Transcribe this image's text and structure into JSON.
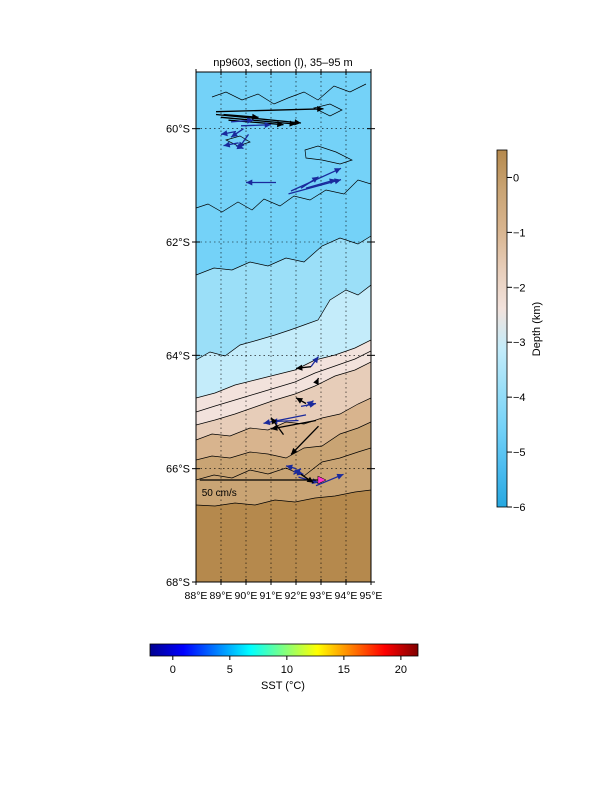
{
  "title": "np9603, section (l), 35–95 m",
  "map": {
    "lon_range": [
      88,
      95
    ],
    "lat_range": [
      -68,
      -59
    ],
    "lon_ticks": [
      {
        "value": 88,
        "label": "88°E"
      },
      {
        "value": 89,
        "label": "89°E"
      },
      {
        "value": 90,
        "label": "90°E"
      },
      {
        "value": 91,
        "label": "91°E"
      },
      {
        "value": 92,
        "label": "92°E"
      },
      {
        "value": 93,
        "label": "93°E"
      },
      {
        "value": 94,
        "label": "94°E"
      },
      {
        "value": 95,
        "label": "95°E"
      }
    ],
    "lat_ticks": [
      {
        "value": -60,
        "label": "60°S"
      },
      {
        "value": -62,
        "label": "62°S"
      },
      {
        "value": -64,
        "label": "64°S"
      },
      {
        "value": -66,
        "label": "66°S"
      },
      {
        "value": -68,
        "label": "68°S"
      }
    ],
    "grid": true,
    "grid_style": "dotted",
    "bathymetry_bands_depth_km": [
      {
        "from": -5,
        "to": -4,
        "color": "#74d2f8"
      },
      {
        "from": -4,
        "to": -3,
        "color": "#9bdff8"
      },
      {
        "from": -3,
        "to": -2,
        "color": "#c4ecfa"
      },
      {
        "from": -2,
        "to": -1.5,
        "color": "#f2e2dc"
      },
      {
        "from": -1.5,
        "to": -1,
        "color": "#e7cdb9"
      },
      {
        "from": -1,
        "to": -0.5,
        "color": "#d8b48e"
      },
      {
        "from": -0.5,
        "to": 0,
        "color": "#c9a474"
      },
      {
        "from": 0,
        "to": 1,
        "color": "#b5894d"
      }
    ],
    "scale_arrow": {
      "label": "50 cm/s",
      "color": "#ff33cc",
      "lon_start": 88.15,
      "lon_end": 93.2,
      "lat": -66.2
    }
  },
  "vectors": {
    "units": "lon/lat degrees",
    "items": [
      {
        "lon": 88.8,
        "lat": -59.7,
        "dlon": 4.3,
        "dlat": 0.05,
        "color": "#000000"
      },
      {
        "lon": 88.8,
        "lat": -59.75,
        "dlon": 3.4,
        "dlat": -0.15,
        "color": "#000000"
      },
      {
        "lon": 89.0,
        "lat": -59.8,
        "dlon": 3.0,
        "dlat": -0.12,
        "color": "#000000"
      },
      {
        "lon": 89.3,
        "lat": -59.85,
        "dlon": 2.2,
        "dlat": -0.08,
        "color": "#000000"
      },
      {
        "lon": 89.1,
        "lat": -59.75,
        "dlon": 1.4,
        "dlat": -0.05,
        "color": "#000000"
      },
      {
        "lon": 89.4,
        "lat": -59.88,
        "dlon": 0.9,
        "dlat": 0.03,
        "color": "#1a2a9c"
      },
      {
        "lon": 89.8,
        "lat": -59.95,
        "dlon": 1.2,
        "dlat": 0.02,
        "color": "#1a2a9c"
      },
      {
        "lon": 89.6,
        "lat": -60.05,
        "dlon": -0.6,
        "dlat": -0.05,
        "color": "#1a2a9c"
      },
      {
        "lon": 89.9,
        "lat": -60.0,
        "dlon": -0.5,
        "dlat": -0.15,
        "color": "#1a2a9c"
      },
      {
        "lon": 90.1,
        "lat": -60.1,
        "dlon": -0.4,
        "dlat": -0.25,
        "color": "#1a2a9c"
      },
      {
        "lon": 89.7,
        "lat": -60.25,
        "dlon": -0.6,
        "dlat": -0.05,
        "color": "#1a2a9c"
      },
      {
        "lon": 89.6,
        "lat": -60.3,
        "dlon": 0.3,
        "dlat": -0.05,
        "color": "#1a2a9c"
      },
      {
        "lon": 91.2,
        "lat": -60.95,
        "dlon": -1.2,
        "dlat": 0.0,
        "color": "#1a2a9c"
      },
      {
        "lon": 91.8,
        "lat": -61.1,
        "dlon": 2.0,
        "dlat": 0.4,
        "color": "#1a2a9c"
      },
      {
        "lon": 91.7,
        "lat": -61.15,
        "dlon": 2.1,
        "dlat": 0.25,
        "color": "#1a2a9c"
      },
      {
        "lon": 92.2,
        "lat": -61.05,
        "dlon": 0.7,
        "dlat": 0.2,
        "color": "#1a2a9c"
      },
      {
        "lon": 92.4,
        "lat": -61.05,
        "dlon": 1.2,
        "dlat": 0.15,
        "color": "#1a2a9c"
      },
      {
        "lon": 92.6,
        "lat": -64.2,
        "dlon": 0.3,
        "dlat": 0.18,
        "color": "#1a2a9c"
      },
      {
        "lon": 92.6,
        "lat": -64.2,
        "dlon": -0.6,
        "dlat": -0.03,
        "color": "#000000"
      },
      {
        "lon": 92.8,
        "lat": -64.5,
        "dlon": 0.1,
        "dlat": 0.1,
        "color": "#000000"
      },
      {
        "lon": 92.4,
        "lat": -64.85,
        "dlon": -0.4,
        "dlat": 0.1,
        "color": "#000000"
      },
      {
        "lon": 92.2,
        "lat": -64.9,
        "dlon": 0.6,
        "dlat": 0.05,
        "color": "#1a2a9c"
      },
      {
        "lon": 92.4,
        "lat": -64.9,
        "dlon": 0.3,
        "dlat": 0.1,
        "color": "#1a2a9c"
      },
      {
        "lon": 92.1,
        "lat": -65.15,
        "dlon": -1.1,
        "dlat": -0.02,
        "color": "#1a2a9c"
      },
      {
        "lon": 92.4,
        "lat": -65.05,
        "dlon": -1.7,
        "dlat": -0.15,
        "color": "#1a2a9c"
      },
      {
        "lon": 92.8,
        "lat": -65.15,
        "dlon": -1.8,
        "dlat": -0.15,
        "color": "#000000"
      },
      {
        "lon": 92.9,
        "lat": -65.25,
        "dlon": -1.1,
        "dlat": -0.5,
        "color": "#000000"
      },
      {
        "lon": 91.5,
        "lat": -65.4,
        "dlon": -0.5,
        "dlat": 0.3,
        "color": "#000000"
      },
      {
        "lon": 92.0,
        "lat": -66.0,
        "dlon": -0.4,
        "dlat": 0.05,
        "color": "#1a2a9c"
      },
      {
        "lon": 91.9,
        "lat": -66.1,
        "dlon": 0.3,
        "dlat": 0.1,
        "color": "#1a2a9c"
      },
      {
        "lon": 91.9,
        "lat": -66.05,
        "dlon": 0.4,
        "dlat": -0.05,
        "color": "#1a2a9c"
      },
      {
        "lon": 92.1,
        "lat": -66.15,
        "dlon": 0.8,
        "dlat": -0.1,
        "color": "#1a2a9c"
      },
      {
        "lon": 92.2,
        "lat": -66.1,
        "dlon": 0.5,
        "dlat": -0.15,
        "color": "#000000"
      },
      {
        "lon": 92.8,
        "lat": -66.3,
        "dlon": 1.1,
        "dlat": 0.2,
        "color": "#1a2a9c"
      }
    ]
  },
  "depth_colorbar": {
    "label": "Depth (km)",
    "range": [
      -6,
      0.5
    ],
    "ticks": [
      {
        "value": 0,
        "label": "0"
      },
      {
        "value": -1,
        "label": "−1"
      },
      {
        "value": -2,
        "label": "−2"
      },
      {
        "value": -3,
        "label": "−3"
      },
      {
        "value": -4,
        "label": "−4"
      },
      {
        "value": -5,
        "label": "−5"
      },
      {
        "value": -6,
        "label": "−6"
      }
    ],
    "colors": [
      "#27a8e0",
      "#4cbcef",
      "#74d2f8",
      "#9bdff8",
      "#c4ecfa",
      "#f2e2dc",
      "#e7cdb9",
      "#d8b48e",
      "#c9a474",
      "#b5894d"
    ]
  },
  "sst_colorbar": {
    "label": "SST (°C)",
    "range": [
      -2,
      21.5
    ],
    "ticks": [
      {
        "value": 0,
        "label": "0"
      },
      {
        "value": 5,
        "label": "5"
      },
      {
        "value": 10,
        "label": "10"
      },
      {
        "value": 15,
        "label": "15"
      },
      {
        "value": 20,
        "label": "20"
      }
    ],
    "colors": [
      "#00008f",
      "#0000ff",
      "#0080ff",
      "#00ffff",
      "#80ff80",
      "#ffff00",
      "#ff8000",
      "#ff0000",
      "#800000"
    ]
  }
}
